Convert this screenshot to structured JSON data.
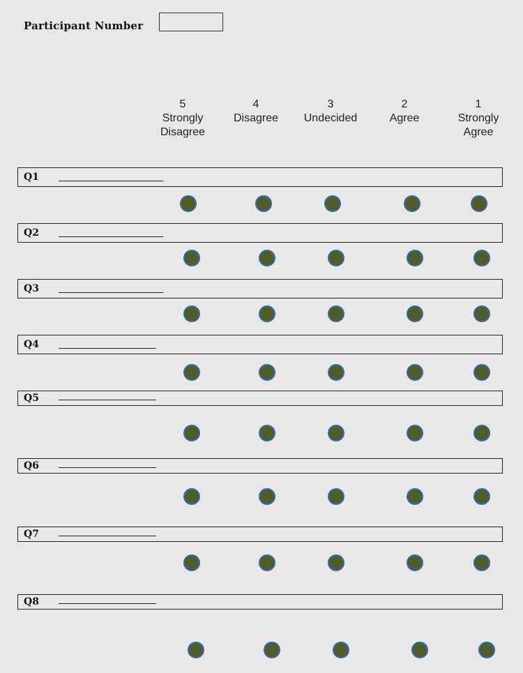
{
  "form": {
    "participant_label": "Participant Number",
    "participant_value": ""
  },
  "scale": [
    {
      "number": "5",
      "label_line1": "Strongly",
      "label_line2": "Disagree"
    },
    {
      "number": "4",
      "label_line1": "Disagree",
      "label_line2": ""
    },
    {
      "number": "3",
      "label_line1": "Undecided",
      "label_line2": ""
    },
    {
      "number": "2",
      "label_line1": "Agree",
      "label_line2": ""
    },
    {
      "number": "1",
      "label_line1": "Strongly",
      "label_line2": "Agree"
    }
  ],
  "questions": [
    {
      "label": "Q1"
    },
    {
      "label": "Q2"
    },
    {
      "label": "Q3"
    },
    {
      "label": "Q4"
    },
    {
      "label": "Q5"
    },
    {
      "label": "Q6"
    },
    {
      "label": "Q7"
    },
    {
      "label": "Q8"
    }
  ],
  "colors": {
    "radio_fill": "#4e5d2a",
    "radio_border": "#3b68ad",
    "background": "#e9e7e7"
  }
}
